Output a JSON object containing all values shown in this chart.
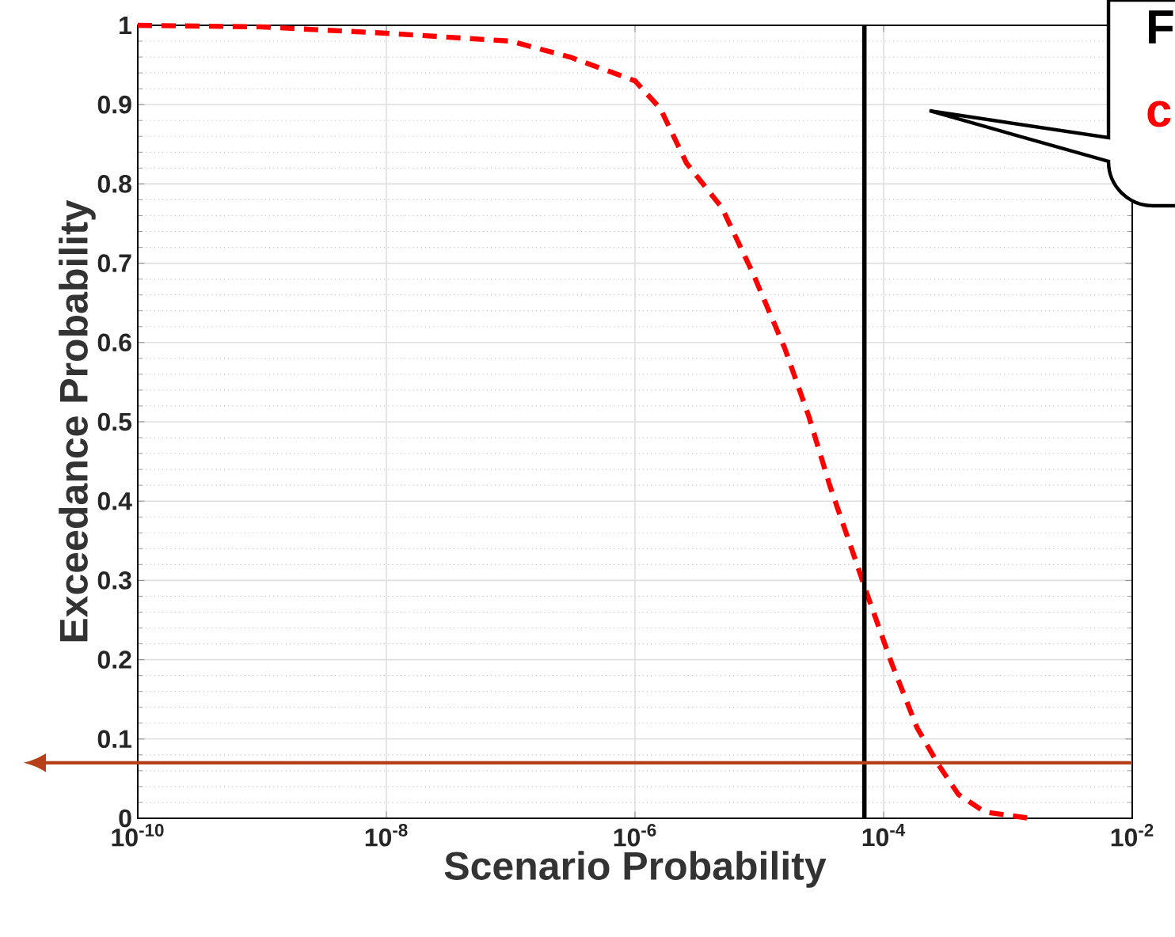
{
  "chart_data": {
    "type": "line",
    "xlabel": "Scenario Probability",
    "ylabel": "Exceedance Probability",
    "log": "x",
    "grid": true,
    "line_style": "dashed",
    "marker": "none",
    "xlim": [
      1e-10,
      0.01
    ],
    "ylim": [
      0,
      1
    ],
    "xticks": [
      {
        "value": 1e-10,
        "label": "10$^{-10}$"
      },
      {
        "value": 1e-08,
        "label": "10$^{-8}$"
      },
      {
        "value": 1e-06,
        "label": "10$^{-6}$"
      },
      {
        "value": 0.0001,
        "label": "10$^{-4}$"
      },
      {
        "value": 0.01,
        "label": "10$^{-2}$"
      }
    ],
    "yticks": [
      0,
      0.1,
      0.2,
      0.3,
      0.4,
      0.5,
      0.6,
      0.7,
      0.8,
      0.9,
      1
    ],
    "series": [
      {
        "color": "#ff0000",
        "x": [
          1e-10,
          1e-09,
          1e-08,
          1e-07,
          3e-07,
          1e-06,
          1.6e-06,
          2.6e-06,
          5e-06,
          8.9e-06,
          1.6e-05,
          2.5e-05,
          3.7e-05,
          5.9e-05,
          7.2e-05,
          0.000117,
          0.000186,
          0.000275,
          0.0004,
          0.00065,
          0.0015
        ],
        "values": [
          1.0,
          0.998,
          0.99,
          0.98,
          0.96,
          0.93,
          0.895,
          0.826,
          0.77,
          0.687,
          0.593,
          0.507,
          0.419,
          0.327,
          0.287,
          0.194,
          0.114,
          0.068,
          0.03,
          0.008,
          0.0
        ]
      }
    ],
    "ref_lines": [
      {
        "axis": "x",
        "value": 7e-05,
        "color": "#000000"
      },
      {
        "axis": "y",
        "value": 0.07,
        "color": "#b5401a"
      }
    ],
    "annotations": [
      "F",
      "c"
    ]
  }
}
